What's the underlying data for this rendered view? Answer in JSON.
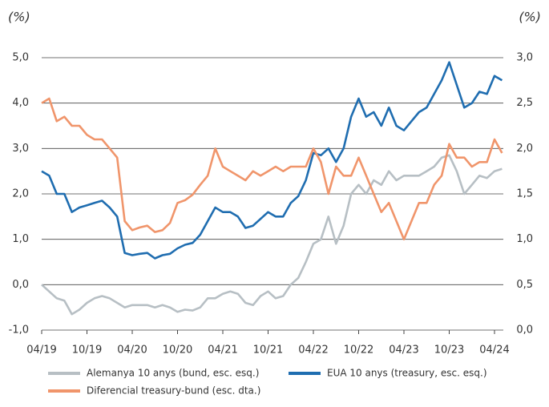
{
  "chart_data": {
    "type": "line",
    "y_label": "(%)",
    "y2_label": "(%)",
    "categories": [
      "04/19",
      null,
      null,
      null,
      null,
      null,
      "10/19",
      null,
      null,
      null,
      null,
      null,
      "04/20",
      null,
      null,
      null,
      null,
      null,
      "10/20",
      null,
      null,
      null,
      null,
      null,
      "04/21",
      null,
      null,
      null,
      null,
      null,
      "10/21",
      null,
      null,
      null,
      null,
      null,
      "04/22",
      null,
      null,
      null,
      null,
      null,
      "10/22",
      null,
      null,
      null,
      null,
      null,
      "04/23",
      null,
      null,
      null,
      null,
      null,
      "10/23",
      null,
      null,
      null,
      null,
      null,
      "04/24",
      null
    ],
    "ylim": [
      -1,
      5
    ],
    "yticks": [
      {
        "value": -1,
        "label": "-1,0"
      },
      {
        "value": 0,
        "label": "0,0"
      },
      {
        "value": 1,
        "label": "1,0"
      },
      {
        "value": 2,
        "label": "2,0"
      },
      {
        "value": 3,
        "label": "3,0"
      },
      {
        "value": 4,
        "label": "4,0"
      },
      {
        "value": 5,
        "label": "5,0"
      }
    ],
    "y2lim": [
      0,
      3
    ],
    "y2ticks": [
      {
        "value": 0,
        "label": "0,0"
      },
      {
        "value": 0.5,
        "label": "0,5"
      },
      {
        "value": 1,
        "label": "1,0"
      },
      {
        "value": 1.5,
        "label": "1,5"
      },
      {
        "value": 2,
        "label": "2,0"
      },
      {
        "value": 2.5,
        "label": "2,5"
      },
      {
        "value": 3,
        "label": "3,0"
      }
    ],
    "grid": true,
    "series": [
      {
        "name": "Alemanya 10 anys (bund, esc. esq.)",
        "color": "#b7bfc4",
        "values": [
          0.0,
          -0.15,
          -0.3,
          -0.35,
          -0.65,
          -0.55,
          -0.4,
          -0.3,
          -0.25,
          -0.3,
          -0.4,
          -0.5,
          -0.45,
          -0.45,
          -0.45,
          -0.5,
          -0.45,
          -0.5,
          -0.6,
          -0.55,
          -0.57,
          -0.5,
          -0.3,
          -0.3,
          -0.2,
          -0.15,
          -0.2,
          -0.4,
          -0.45,
          -0.25,
          -0.15,
          -0.3,
          -0.25,
          0.0,
          0.15,
          0.5,
          0.9,
          1.0,
          1.5,
          0.9,
          1.3,
          2.0,
          2.2,
          2.0,
          2.3,
          2.2,
          2.5,
          2.3,
          2.4,
          2.4,
          2.4,
          2.5,
          2.6,
          2.8,
          2.85,
          2.5,
          2.0,
          2.2,
          2.4,
          2.35,
          2.5,
          2.55
        ]
      },
      {
        "name": "EUA 10 anys (treasury, esc. esq.)",
        "color": "#1f6db0",
        "values": [
          2.5,
          2.4,
          2.0,
          2.0,
          1.6,
          1.7,
          1.75,
          1.8,
          1.85,
          1.7,
          1.5,
          0.7,
          0.65,
          0.68,
          0.7,
          0.58,
          0.65,
          0.68,
          0.8,
          0.88,
          0.92,
          1.1,
          1.4,
          1.7,
          1.6,
          1.6,
          1.5,
          1.25,
          1.3,
          1.45,
          1.6,
          1.5,
          1.5,
          1.8,
          1.95,
          2.3,
          2.9,
          2.85,
          3.0,
          2.7,
          3.0,
          3.7,
          4.1,
          3.7,
          3.8,
          3.5,
          3.9,
          3.5,
          3.4,
          3.6,
          3.8,
          3.9,
          4.2,
          4.5,
          4.9,
          4.4,
          3.9,
          4.0,
          4.25,
          4.2,
          4.6,
          4.5
        ]
      },
      {
        "name": "Diferencial treasury-bund (esc. dta.)",
        "color": "#f0956b",
        "axis": "y2",
        "values": [
          2.5,
          2.55,
          2.3,
          2.35,
          2.25,
          2.25,
          2.15,
          2.1,
          2.1,
          2.0,
          1.9,
          1.2,
          1.1,
          1.13,
          1.15,
          1.08,
          1.1,
          1.18,
          1.4,
          1.43,
          1.49,
          1.6,
          1.7,
          2.0,
          1.8,
          1.75,
          1.7,
          1.65,
          1.75,
          1.7,
          1.75,
          1.8,
          1.75,
          1.8,
          1.8,
          1.8,
          2.0,
          1.85,
          1.5,
          1.8,
          1.7,
          1.7,
          1.9,
          1.7,
          1.5,
          1.3,
          1.4,
          1.2,
          1.0,
          1.2,
          1.4,
          1.4,
          1.6,
          1.7,
          2.05,
          1.9,
          1.9,
          1.8,
          1.85,
          1.85,
          2.1,
          1.95
        ]
      }
    ]
  }
}
